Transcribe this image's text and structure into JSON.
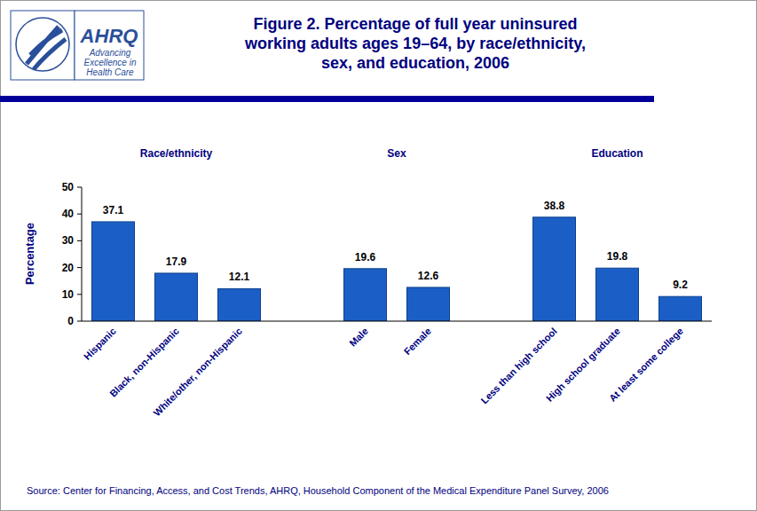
{
  "chart_data": {
    "type": "bar",
    "title": "Figure 2. Percentage of full year uninsured\nworking adults ages 19–64, by race/ethnicity,\nsex, and education, 2006",
    "logo": {
      "name": "AHRQ",
      "tagline": [
        "Advancing",
        "Excellence in",
        "Health Care"
      ]
    },
    "y_label": "Percentage",
    "categories": [
      "Hispanic",
      "Black, non-Hispanic",
      "White/other, non-Hispanic",
      "Male",
      "Female",
      "Less than high school",
      "High school graduate",
      "At least some college"
    ],
    "category_groups": [
      "Race/ethnicity",
      "Race/ethnicity",
      "Race/ethnicity",
      "Sex",
      "Sex",
      "Education",
      "Education",
      "Education"
    ],
    "values": [
      37.1,
      17.9,
      12.1,
      19.6,
      12.6,
      38.8,
      19.8,
      9.2
    ],
    "color": "#1b5fc6",
    "ylim": [
      0,
      50
    ],
    "yticks": [
      0,
      10,
      20,
      30,
      40,
      50
    ],
    "grid": false,
    "data_labels": true,
    "source": "Source: Center for Financing, Access, and Cost Trends, AHRQ, Household Component of the Medical Expenditure Panel Survey, 2006"
  }
}
